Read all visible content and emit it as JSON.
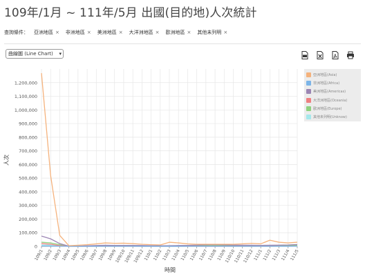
{
  "page": {
    "title": "109年/1月 ~ 111年/5月 出國(目的地)人次統計"
  },
  "filters": {
    "label": "查詢條件：",
    "items": [
      "亞洲地區",
      "非洲地區",
      "美洲地區",
      "大洋洲地區",
      "歐洲地區",
      "其他未列明"
    ],
    "remove_glyph": "×"
  },
  "chart_type_select": {
    "value": "曲線圖 (Line Chart)",
    "caret": "▾"
  },
  "export": {
    "icons": [
      "csv-icon",
      "excel-icon",
      "pdf-icon",
      "print-icon"
    ]
  },
  "colors": {
    "asia": "#f5b27c",
    "africa": "#7cb5e8",
    "america": "#9b85b3",
    "oceania": "#ee7f80",
    "europe": "#8fd17f",
    "other": "#a5e8ec",
    "grid": "#e6e6e6",
    "axis": "#888888"
  },
  "chart_data": {
    "type": "line",
    "xlabel": "時間",
    "ylabel": "人次",
    "ylim": [
      0,
      1300000
    ],
    "yticks": [
      0,
      100000,
      200000,
      300000,
      400000,
      500000,
      600000,
      700000,
      800000,
      900000,
      1000000,
      1100000,
      1200000
    ],
    "ytick_labels": [
      "0",
      "100,000",
      "200,000",
      "300,000",
      "400,000",
      "500,000",
      "600,000",
      "700,000",
      "800,000",
      "900,000",
      "1,000,000",
      "1,100,000",
      "1,200,000"
    ],
    "categories": [
      "109/1",
      "109/2",
      "109/3",
      "109/4",
      "109/5",
      "109/6",
      "109/7",
      "109/8",
      "109/9",
      "109/10",
      "109/11",
      "109/12",
      "110/1",
      "110/2",
      "110/3",
      "110/4",
      "110/5",
      "110/6",
      "110/7",
      "110/8",
      "110/9",
      "110/10",
      "110/11",
      "110/12",
      "111/1",
      "111/2",
      "111/3",
      "111/4",
      "111/5"
    ],
    "legend_position": "top-right",
    "grid": true,
    "series": [
      {
        "name": "亞洲地區(Asia)",
        "color_key": "asia",
        "values": [
          1270000,
          520000,
          80000,
          5000,
          8000,
          12000,
          18000,
          25000,
          22000,
          23000,
          20000,
          15000,
          12000,
          10000,
          30000,
          25000,
          18000,
          15000,
          15000,
          15000,
          15000,
          15000,
          18000,
          22000,
          18000,
          45000,
          30000,
          25000,
          30000
        ]
      },
      {
        "name": "非洲地區(Africa)",
        "color_key": "africa",
        "values": [
          3000,
          1500,
          500,
          100,
          100,
          100,
          200,
          200,
          200,
          200,
          200,
          200,
          200,
          200,
          200,
          200,
          200,
          200,
          200,
          200,
          200,
          200,
          200,
          200,
          200,
          300,
          300,
          400,
          500
        ]
      },
      {
        "name": "美洲地區(Americas)",
        "color_key": "america",
        "values": [
          75000,
          55000,
          20000,
          1000,
          2000,
          4000,
          6000,
          8000,
          7000,
          7000,
          7000,
          6000,
          5000,
          4000,
          5000,
          6000,
          7000,
          9000,
          11000,
          12000,
          10000,
          9000,
          8000,
          8000,
          7000,
          8000,
          9000,
          10000,
          13000
        ]
      },
      {
        "name": "大洋洲地區(Oceania)",
        "color_key": "oceania",
        "values": [
          20000,
          15000,
          5000,
          200,
          200,
          200,
          300,
          300,
          300,
          300,
          300,
          300,
          300,
          300,
          300,
          300,
          300,
          300,
          300,
          300,
          300,
          300,
          300,
          300,
          300,
          400,
          500,
          600,
          800
        ]
      },
      {
        "name": "歐洲地區(Europe)",
        "color_key": "europe",
        "values": [
          30000,
          25000,
          12000,
          500,
          800,
          1500,
          2500,
          3500,
          3000,
          2500,
          2500,
          2000,
          1500,
          1200,
          1500,
          2000,
          2500,
          3500,
          5000,
          6000,
          5000,
          4500,
          4000,
          4000,
          3500,
          4000,
          5000,
          6000,
          8000
        ]
      },
      {
        "name": "其他未列明(Unknow)",
        "color_key": "other",
        "values": [
          10000,
          8000,
          3000,
          200,
          200,
          300,
          400,
          500,
          500,
          500,
          500,
          400,
          400,
          300,
          400,
          400,
          500,
          600,
          700,
          800,
          700,
          600,
          600,
          600,
          500,
          600,
          700,
          800,
          900
        ]
      }
    ]
  }
}
